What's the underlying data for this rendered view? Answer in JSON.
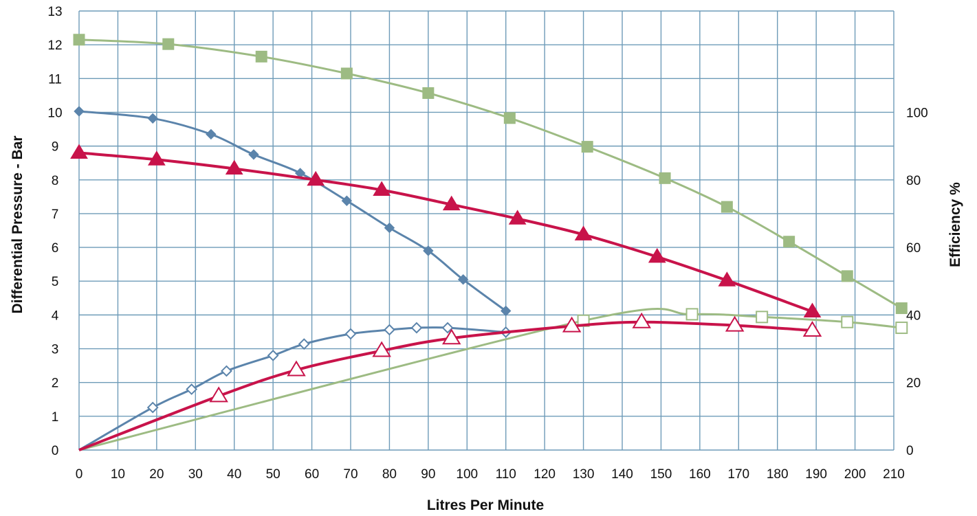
{
  "chart_data": {
    "type": "line",
    "xlabel": "Litres Per Minute",
    "ylabel": "Differential Pressure - Bar",
    "y2label": "Efficiency %",
    "xlim": [
      0,
      210
    ],
    "ylim": [
      0,
      13
    ],
    "y2lim": [
      0,
      130
    ],
    "x_ticks": [
      0,
      10,
      20,
      30,
      40,
      50,
      60,
      70,
      80,
      90,
      100,
      110,
      120,
      130,
      140,
      150,
      160,
      170,
      180,
      190,
      200,
      210
    ],
    "y_ticks": [
      0,
      1,
      2,
      3,
      4,
      5,
      6,
      7,
      8,
      9,
      10,
      11,
      12,
      13
    ],
    "y2_ticks": [
      0,
      20,
      40,
      60,
      80,
      100
    ],
    "grid": true,
    "colors": {
      "grid": "#6e9bb8",
      "blue": "#5b84ab",
      "green": "#9dbb83",
      "red": "#c8134a"
    },
    "series": [
      {
        "axis": "left",
        "color": "#5b84ab",
        "marker": "diamond-filled",
        "x": [
          0,
          19,
          34,
          45,
          57,
          69,
          80,
          90,
          99,
          110
        ],
        "y": [
          10.03,
          9.82,
          9.35,
          8.75,
          8.2,
          7.38,
          6.58,
          5.9,
          5.05,
          4.12
        ]
      },
      {
        "axis": "left",
        "color": "#9dbb83",
        "marker": "square-filled",
        "x": [
          0,
          23,
          47,
          69,
          90,
          111,
          131,
          151,
          167,
          183,
          198,
          212
        ],
        "y": [
          12.15,
          12.02,
          11.65,
          11.15,
          10.57,
          9.83,
          8.98,
          8.05,
          7.2,
          6.17,
          5.15,
          4.2
        ]
      },
      {
        "axis": "left",
        "color": "#c8134a",
        "marker": "triangle-filled",
        "x": [
          0,
          20,
          40,
          61,
          78,
          96,
          113,
          130,
          149,
          167,
          189
        ],
        "y": [
          8.8,
          8.6,
          8.33,
          8.0,
          7.7,
          7.27,
          6.85,
          6.38,
          5.72,
          5.02,
          4.1
        ]
      },
      {
        "axis": "right",
        "color": "#5b84ab",
        "marker": "diamond-open",
        "x": [
          0,
          19,
          29,
          38,
          50,
          58,
          70,
          80,
          87,
          95,
          110
        ],
        "y": [
          0,
          12.6,
          18.0,
          23.4,
          28.0,
          31.4,
          34.4,
          35.6,
          36.2,
          36.2,
          34.9
        ]
      },
      {
        "axis": "right",
        "color": "#9dbb83",
        "marker": "square-open",
        "x": [
          0,
          130,
          158,
          176,
          198,
          212
        ],
        "y": [
          0,
          38.3,
          40.2,
          39.4,
          37.9,
          36.2
        ]
      },
      {
        "axis": "right",
        "color": "#c8134a",
        "marker": "triangle-open",
        "x": [
          0,
          36,
          56,
          78,
          96,
          127,
          145,
          169,
          189
        ],
        "y": [
          0,
          16.0,
          23.7,
          29.4,
          33.1,
          36.7,
          37.9,
          36.9,
          35.4
        ]
      }
    ]
  }
}
